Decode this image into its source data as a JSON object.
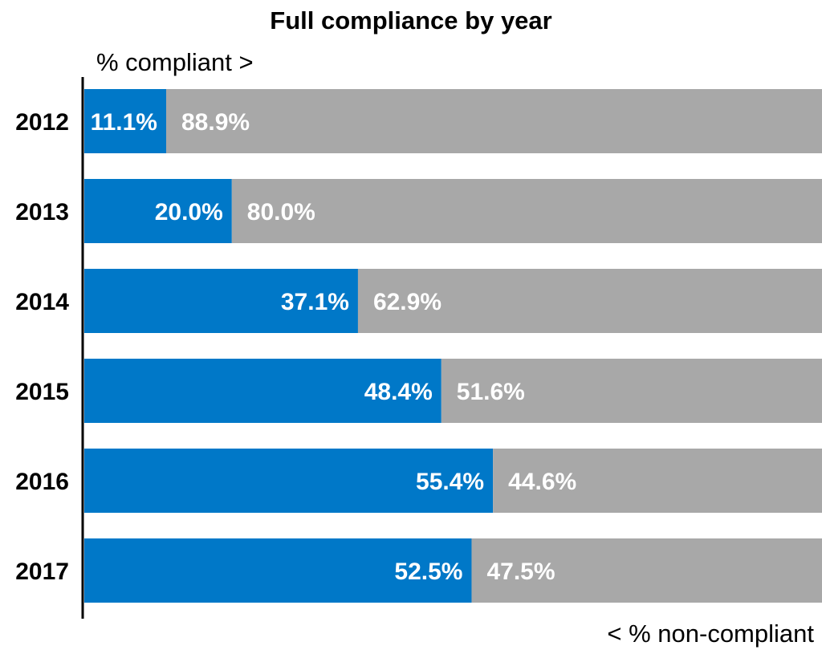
{
  "chart_data": {
    "type": "bar",
    "orientation": "horizontal",
    "stacked": true,
    "title": "Full compliance by year",
    "top_axis_label": "% compliant >",
    "bottom_axis_label": "< % non-compliant",
    "categories": [
      "2012",
      "2013",
      "2014",
      "2015",
      "2016",
      "2017"
    ],
    "series": [
      {
        "values": [
          11.1,
          20.0,
          37.1,
          48.4,
          55.4,
          52.5
        ],
        "labels": [
          "11.1%",
          "20.0%",
          "37.1%",
          "48.4%",
          "55.4%",
          "52.5%"
        ],
        "color": "#0078c8"
      },
      {
        "values": [
          88.9,
          80.0,
          62.9,
          51.6,
          44.6,
          47.5
        ],
        "labels": [
          "88.9%",
          "80.0%",
          "62.9%",
          "51.6%",
          "44.6%",
          "47.5%"
        ],
        "color": "#a8a8a8"
      }
    ],
    "xlim": [
      0,
      100
    ],
    "grid": false,
    "legend": "none"
  }
}
